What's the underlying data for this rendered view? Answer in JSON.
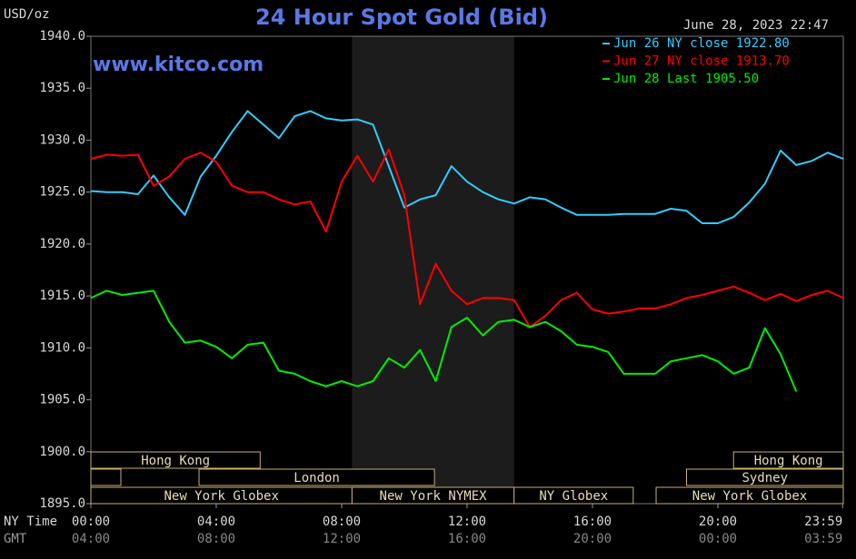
{
  "chart_data": {
    "type": "line",
    "title": "24 Hour Spot Gold (Bid)",
    "unit_label": "USD/oz",
    "timestamp": "June 28, 2023 22:47",
    "watermark": "www.kitco.com",
    "x_axis_label": "NY Time",
    "x2_axis_label": "GMT",
    "xlim": [
      0,
      24
    ],
    "ylim": [
      1895,
      1940
    ],
    "xticks": [
      {
        "value": 0,
        "label": "00:00"
      },
      {
        "value": 4,
        "label": "04:00"
      },
      {
        "value": 8,
        "label": "08:00"
      },
      {
        "value": 12,
        "label": "12:00"
      },
      {
        "value": 16,
        "label": "16:00"
      },
      {
        "value": 20,
        "label": "20:00"
      },
      {
        "value": 23.98,
        "label": "23:59"
      }
    ],
    "x2ticks": [
      {
        "value": 0,
        "label": "04:00"
      },
      {
        "value": 4,
        "label": "08:00"
      },
      {
        "value": 8,
        "label": "12:00"
      },
      {
        "value": 12,
        "label": "16:00"
      },
      {
        "value": 16,
        "label": "20:00"
      },
      {
        "value": 20,
        "label": "00:00"
      },
      {
        "value": 23.98,
        "label": "03:59"
      }
    ],
    "yticks": [
      {
        "value": 1940,
        "label": "1940.0"
      },
      {
        "value": 1935,
        "label": "1935.0"
      },
      {
        "value": 1930,
        "label": "1930.0"
      },
      {
        "value": 1925,
        "label": "1925.0"
      },
      {
        "value": 1920,
        "label": "1920.0"
      },
      {
        "value": 1915,
        "label": "1915.0"
      },
      {
        "value": 1910,
        "label": "1910.0"
      },
      {
        "value": 1905,
        "label": "1905.0"
      },
      {
        "value": 1900,
        "label": "1900.0"
      },
      {
        "value": 1895,
        "label": "1895.0"
      }
    ],
    "x": [
      0,
      0.5,
      1,
      1.5,
      2,
      2.5,
      3,
      3.5,
      4,
      4.5,
      5,
      5.5,
      6,
      6.5,
      7,
      7.5,
      8,
      8.5,
      9,
      9.5,
      10,
      10.5,
      11,
      11.5,
      12,
      12.5,
      13,
      13.5,
      14,
      14.5,
      15,
      15.5,
      16,
      16.5,
      17,
      17.5,
      18,
      18.5,
      19,
      19.5,
      20,
      20.5,
      21,
      21.5,
      22,
      22.5,
      23,
      23.5,
      24
    ],
    "series": [
      {
        "name": "Jun 26 NY close 1922.80",
        "color": "#33ccff",
        "values": [
          1925.1,
          1925.0,
          1925.0,
          1924.8,
          1926.6,
          1924.5,
          1922.8,
          1926.5,
          1928.5,
          1930.8,
          1932.8,
          1931.5,
          1930.2,
          1932.3,
          1932.8,
          1932.1,
          1931.9,
          1932.0,
          1931.5,
          1927.5,
          1923.5,
          1924.3,
          1924.7,
          1927.5,
          1926.0,
          1925.0,
          1924.3,
          1923.9,
          1924.5,
          1924.3,
          1923.5,
          1922.8,
          1922.8,
          1922.8,
          1922.9,
          1922.9,
          1922.9,
          1923.4,
          1923.2,
          1922.0,
          1922.0,
          1922.6,
          1924.0,
          1925.8,
          1929.0,
          1927.6,
          1928.0,
          1928.8,
          1928.2
        ]
      },
      {
        "name": "Jun 27 NY close 1913.70",
        "color": "#ff0000",
        "values": [
          1928.2,
          1928.6,
          1928.5,
          1928.6,
          1925.6,
          1926.5,
          1928.2,
          1928.8,
          1927.9,
          1925.6,
          1925.0,
          1925.0,
          1924.3,
          1923.8,
          1924.1,
          1921.2,
          1926.0,
          1928.5,
          1926.0,
          1929.1,
          1924.7,
          1914.2,
          1918.1,
          1915.5,
          1914.2,
          1914.8,
          1914.8,
          1914.6,
          1912.0,
          1913.1,
          1914.6,
          1915.3,
          1913.7,
          1913.3,
          1913.5,
          1913.8,
          1913.8,
          1914.2,
          1914.8,
          1915.1,
          1915.5,
          1915.9,
          1915.3,
          1914.6,
          1915.2,
          1914.5,
          1915.1,
          1915.5,
          1914.8
        ]
      },
      {
        "name": "Jun 28 Last 1905.50",
        "color": "#00ee00",
        "values": [
          1914.8,
          1915.5,
          1915.1,
          1915.3,
          1915.5,
          1912.5,
          1910.5,
          1910.7,
          1910.1,
          1909.0,
          1910.3,
          1910.5,
          1907.8,
          1907.5,
          1906.8,
          1906.3,
          1906.8,
          1906.3,
          1906.8,
          1909.0,
          1908.1,
          1909.8,
          1906.8,
          1912.0,
          1912.9,
          1911.2,
          1912.5,
          1912.7,
          1912.0,
          1912.5,
          1911.6,
          1910.3,
          1910.1,
          1909.6,
          1907.5,
          1907.5,
          1907.5,
          1908.7,
          1909.0,
          1909.3,
          1908.7,
          1907.5,
          1908.1,
          1911.9,
          1909.4,
          1905.8,
          null,
          null,
          null
        ]
      }
    ],
    "sessions": [
      {
        "label": "Hong Kong",
        "start": 0,
        "end": 5.4,
        "row": 0
      },
      {
        "label": "Hong Kong",
        "start": 20.5,
        "end": 24,
        "row": 0
      },
      {
        "label": "London",
        "start": 3.45,
        "end": 10.96,
        "row": 1
      },
      {
        "label": "Sydney",
        "start": 19,
        "end": 24,
        "row": 1
      },
      {
        "label": "New York Globex",
        "start": 0,
        "end": 8.33,
        "row": 2
      },
      {
        "label": "New York NYMEX",
        "start": 8.33,
        "end": 13.5,
        "row": 2,
        "shaded": true
      },
      {
        "label": "NY Globex",
        "start": 13.5,
        "end": 17.3,
        "row": 2
      },
      {
        "label": "New York Globex",
        "start": 18.03,
        "end": 24,
        "row": 2
      }
    ]
  }
}
